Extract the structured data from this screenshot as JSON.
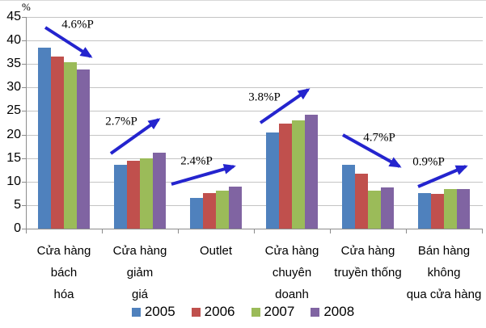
{
  "chart_data": {
    "type": "bar",
    "title": "",
    "unit_label": "%",
    "xlabel": "",
    "ylabel": "%",
    "ylim": [
      0,
      45
    ],
    "ytick_step": 5,
    "grid": true,
    "legend_position": "bottom",
    "categories": [
      "Cửa hàng bách\nhóa",
      "Cửa hàng giảm\ngiá",
      "Outlet",
      "Cửa hàng\nchuyên doanh",
      "Cửa hàng\ntruyền thống",
      "Bán hàng không\nqua cửa hàng"
    ],
    "series": [
      {
        "name": "2005",
        "color": "#4F81BD",
        "values": [
          38.5,
          13.5,
          6.5,
          20.4,
          13.5,
          7.6
        ]
      },
      {
        "name": "2006",
        "color": "#C0504D",
        "values": [
          36.5,
          14.4,
          7.6,
          22.4,
          11.6,
          7.3
        ]
      },
      {
        "name": "2007",
        "color": "#9BBB59",
        "values": [
          35.4,
          14.9,
          8.1,
          23.1,
          8.1,
          8.4
        ]
      },
      {
        "name": "2008",
        "color": "#8064A2",
        "values": [
          33.9,
          16.2,
          9.0,
          24.2,
          8.8,
          8.5
        ]
      }
    ],
    "annotations": [
      {
        "label": "4.6%P",
        "direction": "down",
        "category": "Cửa hàng bách hóa"
      },
      {
        "label": "2.7%P",
        "direction": "up",
        "category": "Cửa hàng giảm giá"
      },
      {
        "label": "2.4%P",
        "direction": "up",
        "category": "Outlet"
      },
      {
        "label": "3.8%P",
        "direction": "up",
        "category": "Cửa hàng chuyên doanh"
      },
      {
        "label": "4.7%P",
        "direction": "down",
        "category": "Cửa hàng truyền thống"
      },
      {
        "label": "0.9%P",
        "direction": "up",
        "category": "Bán hàng không qua cửa hàng"
      }
    ],
    "arrow_color": "#2424CE"
  }
}
